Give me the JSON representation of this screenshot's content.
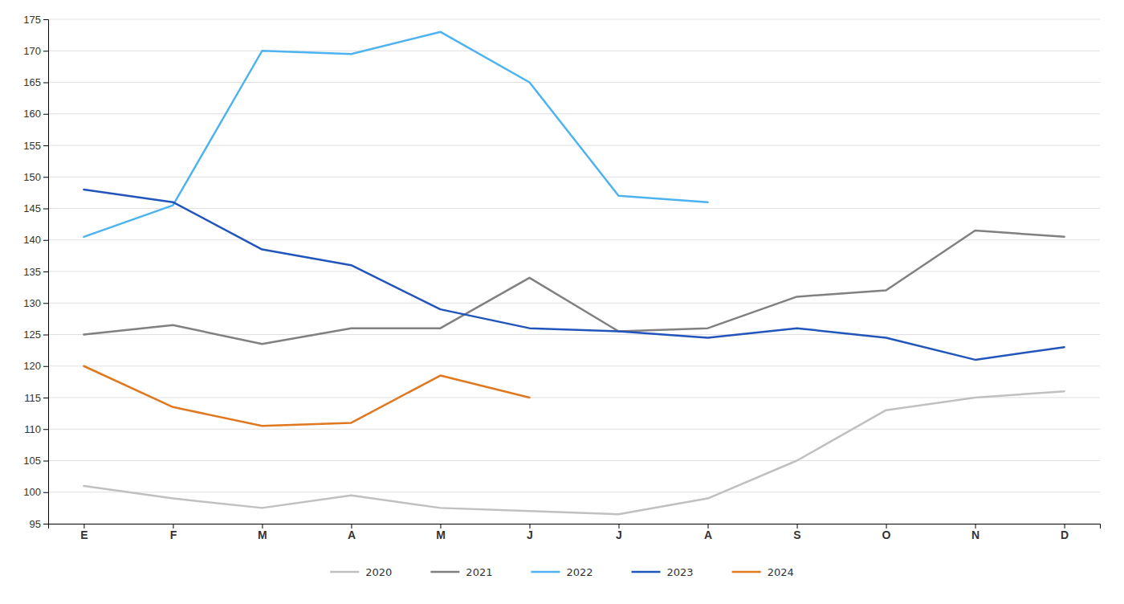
{
  "chart_data": {
    "type": "line",
    "categories": [
      "E",
      "F",
      "M",
      "A",
      "M",
      "J",
      "J",
      "A",
      "S",
      "O",
      "N",
      "D"
    ],
    "series": [
      {
        "name": "2020",
        "color": "#c0c0c0",
        "values": [
          101,
          99,
          97.5,
          99.5,
          97.5,
          97,
          96.5,
          99,
          105,
          113,
          115,
          116
        ]
      },
      {
        "name": "2021",
        "color": "#808080",
        "values": [
          125,
          126.5,
          123.5,
          126,
          126,
          134,
          125.5,
          126,
          131,
          132,
          141.5,
          140.5
        ]
      },
      {
        "name": "2022",
        "color": "#4db3f0",
        "values": [
          140.5,
          145.5,
          170,
          169.5,
          173,
          165,
          147,
          146,
          null,
          null,
          null,
          null
        ]
      },
      {
        "name": "2023",
        "color": "#2255bb",
        "values": [
          148,
          146,
          138.5,
          136,
          129,
          126,
          125.5,
          124.5,
          126,
          124.5,
          121,
          123
        ]
      },
      {
        "name": "2024",
        "color": "#e07820",
        "values": [
          120,
          113.5,
          110.5,
          111,
          118.5,
          115,
          null,
          null,
          null,
          null,
          null,
          null
        ]
      }
    ],
    "ylim": [
      95,
      175
    ],
    "yticks": [
      95,
      100,
      105,
      110,
      115,
      120,
      125,
      130,
      135,
      140,
      145,
      150,
      155,
      160,
      165,
      170,
      175
    ],
    "grid": true,
    "legend": "bottom"
  }
}
